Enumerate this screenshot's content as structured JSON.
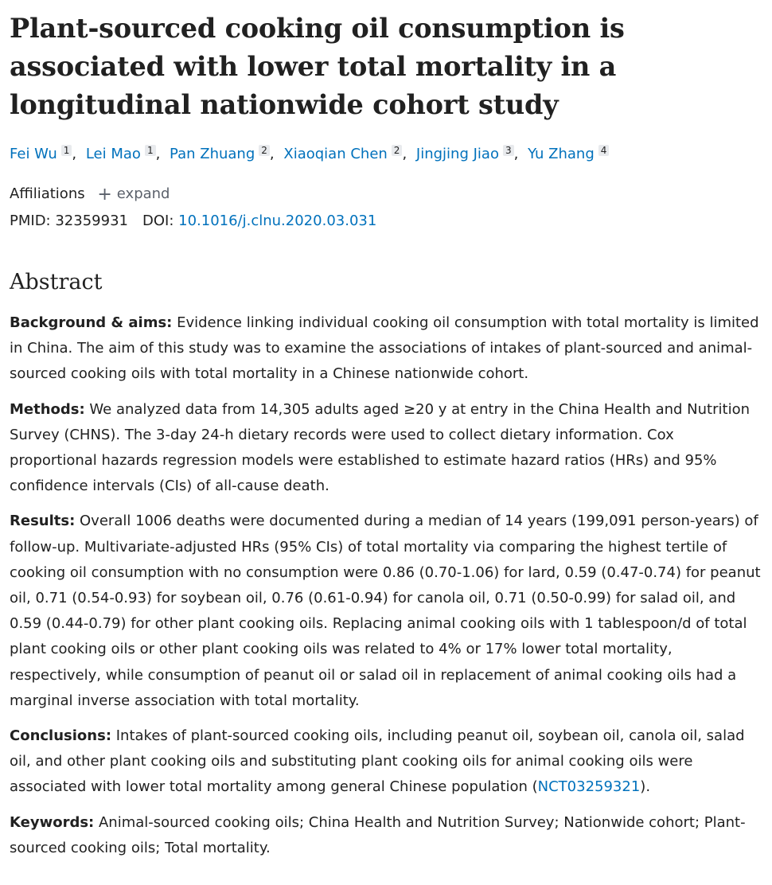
{
  "article": {
    "title": "Plant-sourced cooking oil consumption is associated with lower total mortality in a longitudinal nationwide cohort study",
    "authors": [
      {
        "name": "Fei Wu",
        "aff": "1"
      },
      {
        "name": "Lei Mao",
        "aff": "1"
      },
      {
        "name": "Pan Zhuang",
        "aff": "2"
      },
      {
        "name": "Xiaoqian Chen",
        "aff": "2"
      },
      {
        "name": "Jingjing Jiao",
        "aff": "3"
      },
      {
        "name": "Yu Zhang",
        "aff": "4"
      }
    ],
    "affiliations_label": "Affiliations",
    "expand_label": "expand",
    "pmid_label": "PMID:",
    "pmid": "32359931",
    "doi_label": "DOI:",
    "doi": "10.1016/j.clnu.2020.03.031"
  },
  "abstract": {
    "heading": "Abstract",
    "background_label": "Background & aims:",
    "background_text": " Evidence linking individual cooking oil consumption with total mortality is limited in China. The aim of this study was to examine the associations of intakes of plant-sourced and animal-sourced cooking oils with total mortality in a Chinese nationwide cohort.",
    "methods_label": "Methods:",
    "methods_text": " We analyzed data from 14,305 adults aged ≥20 y at entry in the China Health and Nutrition Survey (CHNS). The 3-day 24-h dietary records were used to collect dietary information. Cox proportional hazards regression models were established to estimate hazard ratios (HRs) and 95% confidence intervals (CIs) of all-cause death.",
    "results_label": "Results:",
    "results_text": " Overall 1006 deaths were documented during a median of 14 years (199,091 person-years) of follow-up. Multivariate-adjusted HRs (95% CIs) of total mortality via comparing the highest tertile of cooking oil consumption with no consumption were 0.86 (0.70-1.06) for lard, 0.59 (0.47-0.74) for peanut oil, 0.71 (0.54-0.93) for soybean oil, 0.76 (0.61-0.94) for canola oil, 0.71 (0.50-0.99) for salad oil, and 0.59 (0.44-0.79) for other plant cooking oils. Replacing animal cooking oils with 1 tablespoon/d of total plant cooking oils or other plant cooking oils was related to 4% or 17% lower total mortality, respectively, while consumption of peanut oil or salad oil in replacement of animal cooking oils had a marginal inverse association with total mortality.",
    "conclusions_label": "Conclusions:",
    "conclusions_text": " Intakes of plant-sourced cooking oils, including peanut oil, soybean oil, canola oil, salad oil, and other plant cooking oils and substituting plant cooking oils for animal cooking oils were associated with lower total mortality among general Chinese population (",
    "conclusions_link": "NCT03259321",
    "conclusions_end": ").",
    "keywords_label": "Keywords:",
    "keywords_text": " Animal-sourced cooking oils; China Health and Nutrition Survey; Nationwide cohort; Plant-sourced cooking oils; Total mortality."
  }
}
